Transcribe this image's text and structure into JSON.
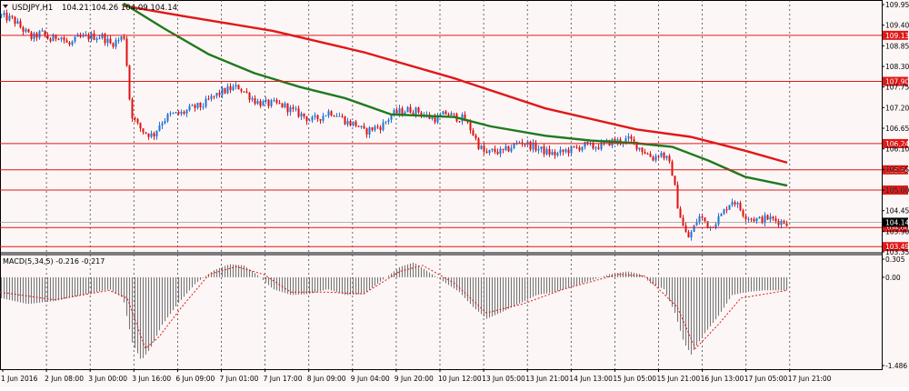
{
  "window": {
    "symbol_label": "USDJPY,H1",
    "ohlc_label": "104.21 104.26 104.09 104.14",
    "menu_icon": "triangle-down-icon"
  },
  "colors": {
    "background": "#fdf6f6",
    "bull_candle": "#1e74d6",
    "bear_candle": "#e01010",
    "ma_fast": "#e01818",
    "ma_slow": "#1e7a1e",
    "level_line": "#e01818",
    "grid": "#444444",
    "macd_hist": "#777777",
    "macd_signal": "#e01818"
  },
  "chart_data": [
    {
      "type": "candlestick",
      "symbol": "USDJPY",
      "timeframe": "H1",
      "ylim": [
        103.35,
        110.0
      ],
      "y_ticks": [
        "109.95",
        "109.40",
        "108.85",
        "108.30",
        "107.75",
        "107.20",
        "106.65",
        "106.10",
        "105.55",
        "105.00",
        "104.45",
        "103.90",
        "103.35"
      ],
      "x_ticks": [
        "1 Jun 2016",
        "2 Jun 08:00",
        "3 Jun 00:00",
        "3 Jun 16:00",
        "6 Jun 09:00",
        "7 Jun 01:00",
        "7 Jun 17:00",
        "8 Jun 09:00",
        "9 Jun 04:00",
        "9 Jun 20:00",
        "10 Jun 12:00",
        "13 Jun 05:00",
        "13 Jun 21:00",
        "14 Jun 13:00",
        "15 Jun 05:00",
        "15 Jun 21:00",
        "16 Jun 13:00",
        "17 Jun 05:00",
        "17 Jun 21:00"
      ],
      "price_path": [
        [
          0,
          109.65
        ],
        [
          14,
          109.55
        ],
        [
          24,
          109.3
        ],
        [
          35,
          109.05
        ],
        [
          45,
          109.2
        ],
        [
          55,
          109.0
        ],
        [
          65,
          109.15
        ],
        [
          75,
          108.85
        ],
        [
          85,
          109.05
        ],
        [
          100,
          109.1
        ],
        [
          112,
          109.1
        ],
        [
          121,
          108.9
        ],
        [
          128,
          108.98
        ],
        [
          137,
          109.12
        ],
        [
          141,
          107.6
        ],
        [
          145,
          107.0
        ],
        [
          150,
          106.75
        ],
        [
          158,
          106.55
        ],
        [
          168,
          106.45
        ],
        [
          176,
          106.8
        ],
        [
          186,
          107.0
        ],
        [
          200,
          107.05
        ],
        [
          212,
          107.2
        ],
        [
          222,
          107.25
        ],
        [
          232,
          107.45
        ],
        [
          242,
          107.6
        ],
        [
          252,
          107.7
        ],
        [
          262,
          107.75
        ],
        [
          272,
          107.55
        ],
        [
          282,
          107.35
        ],
        [
          292,
          107.3
        ],
        [
          302,
          107.3
        ],
        [
          312,
          107.25
        ],
        [
          322,
          107.1
        ],
        [
          332,
          107.0
        ],
        [
          342,
          106.85
        ],
        [
          352,
          106.95
        ],
        [
          362,
          107.1
        ],
        [
          372,
          107.0
        ],
        [
          382,
          106.8
        ],
        [
          392,
          106.75
        ],
        [
          400,
          106.55
        ],
        [
          410,
          106.65
        ],
        [
          420,
          106.72
        ],
        [
          430,
          107.0
        ],
        [
          440,
          107.1
        ],
        [
          450,
          107.15
        ],
        [
          460,
          107.1
        ],
        [
          470,
          106.95
        ],
        [
          480,
          106.9
        ],
        [
          490,
          107.05
        ],
        [
          500,
          106.95
        ],
        [
          510,
          106.9
        ],
        [
          518,
          106.6
        ],
        [
          526,
          106.2
        ],
        [
          534,
          105.95
        ],
        [
          542,
          106.05
        ],
        [
          552,
          106.0
        ],
        [
          562,
          106.15
        ],
        [
          572,
          106.3
        ],
        [
          582,
          106.2
        ],
        [
          592,
          106.1
        ],
        [
          602,
          106.0
        ],
        [
          612,
          105.95
        ],
        [
          622,
          106.05
        ],
        [
          632,
          106.1
        ],
        [
          642,
          106.2
        ],
        [
          652,
          106.15
        ],
        [
          662,
          106.2
        ],
        [
          672,
          106.3
        ],
        [
          682,
          106.3
        ],
        [
          692,
          106.35
        ],
        [
          702,
          106.15
        ],
        [
          710,
          106.0
        ],
        [
          718,
          105.85
        ],
        [
          726,
          106.0
        ],
        [
          734,
          105.8
        ],
        [
          740,
          105.4
        ],
        [
          744,
          104.7
        ],
        [
          750,
          104.1
        ],
        [
          756,
          103.7
        ],
        [
          762,
          103.95
        ],
        [
          768,
          104.3
        ],
        [
          774,
          104.2
        ],
        [
          780,
          104.0
        ],
        [
          786,
          104.15
        ],
        [
          794,
          104.35
        ],
        [
          800,
          104.6
        ],
        [
          806,
          104.75
        ],
        [
          812,
          104.55
        ],
        [
          818,
          104.35
        ],
        [
          826,
          104.25
        ],
        [
          834,
          104.2
        ],
        [
          844,
          104.25
        ],
        [
          854,
          104.18
        ],
        [
          866,
          104.14
        ]
      ],
      "series": [
        {
          "name": "",
          "color_key": "ma_fast",
          "points": [
            [
              136,
              109.92
            ],
            [
              200,
              109.65
            ],
            [
              300,
              109.25
            ],
            [
              400,
              108.68
            ],
            [
              500,
              107.98
            ],
            [
              600,
              107.18
            ],
            [
              700,
              106.62
            ],
            [
              760,
              106.42
            ],
            [
              820,
              106.05
            ],
            [
              866,
              105.73
            ]
          ]
        },
        {
          "name": "",
          "color_key": "ma_slow",
          "points": [
            [
              136,
              109.98
            ],
            [
              180,
              109.32
            ],
            [
              230,
              108.62
            ],
            [
              280,
              108.12
            ],
            [
              330,
              107.75
            ],
            [
              380,
              107.45
            ],
            [
              430,
              107.02
            ],
            [
              470,
              106.98
            ],
            [
              500,
              106.95
            ],
            [
              540,
              106.7
            ],
            [
              600,
              106.45
            ],
            [
              650,
              106.32
            ],
            [
              700,
              106.25
            ],
            [
              740,
              106.15
            ],
            [
              780,
              105.78
            ],
            [
              820,
              105.35
            ],
            [
              866,
              105.12
            ]
          ]
        }
      ],
      "levels": [
        "109.13",
        "107.90",
        "106.24",
        "105.54",
        "105.00",
        "104.00",
        "103.49"
      ],
      "current_price": "104.14"
    },
    {
      "type": "bar",
      "title": "MACD(5,34,5) -0.216 -0.217",
      "ylim": [
        -1.486,
        0.305
      ],
      "y_ticks": [
        "0.305",
        "0.00",
        "-1.486"
      ],
      "hist_path": [
        [
          0,
          -0.35
        ],
        [
          30,
          -0.45
        ],
        [
          60,
          -0.4
        ],
        [
          90,
          -0.3
        ],
        [
          120,
          -0.2
        ],
        [
          135,
          -0.35
        ],
        [
          145,
          -1.1
        ],
        [
          155,
          -1.4
        ],
        [
          165,
          -1.2
        ],
        [
          178,
          -0.8
        ],
        [
          195,
          -0.45
        ],
        [
          215,
          -0.1
        ],
        [
          235,
          0.12
        ],
        [
          252,
          0.22
        ],
        [
          268,
          0.2
        ],
        [
          282,
          0.05
        ],
        [
          300,
          -0.2
        ],
        [
          320,
          -0.3
        ],
        [
          340,
          -0.28
        ],
        [
          360,
          -0.2
        ],
        [
          380,
          -0.3
        ],
        [
          400,
          -0.28
        ],
        [
          420,
          -0.05
        ],
        [
          440,
          0.18
        ],
        [
          455,
          0.25
        ],
        [
          470,
          0.1
        ],
        [
          490,
          -0.1
        ],
        [
          505,
          -0.25
        ],
        [
          520,
          -0.5
        ],
        [
          535,
          -0.7
        ],
        [
          550,
          -0.6
        ],
        [
          570,
          -0.45
        ],
        [
          590,
          -0.3
        ],
        [
          610,
          -0.25
        ],
        [
          630,
          -0.15
        ],
        [
          650,
          -0.05
        ],
        [
          670,
          0.05
        ],
        [
          690,
          0.1
        ],
        [
          705,
          0.05
        ],
        [
          715,
          -0.1
        ],
        [
          730,
          -0.2
        ],
        [
          742,
          -0.6
        ],
        [
          752,
          -1.1
        ],
        [
          760,
          -1.3
        ],
        [
          772,
          -1.0
        ],
        [
          790,
          -0.65
        ],
        [
          805,
          -0.3
        ],
        [
          820,
          -0.25
        ],
        [
          840,
          -0.22
        ],
        [
          866,
          -0.22
        ]
      ],
      "signal_path": [
        [
          0,
          -0.25
        ],
        [
          60,
          -0.38
        ],
        [
          120,
          -0.22
        ],
        [
          140,
          -0.35
        ],
        [
          160,
          -1.2
        ],
        [
          175,
          -1.0
        ],
        [
          200,
          -0.5
        ],
        [
          230,
          0.05
        ],
        [
          260,
          0.18
        ],
        [
          290,
          0.05
        ],
        [
          320,
          -0.25
        ],
        [
          360,
          -0.25
        ],
        [
          400,
          -0.28
        ],
        [
          440,
          0.1
        ],
        [
          465,
          0.2
        ],
        [
          500,
          -0.1
        ],
        [
          535,
          -0.6
        ],
        [
          575,
          -0.45
        ],
        [
          620,
          -0.2
        ],
        [
          680,
          0.05
        ],
        [
          710,
          0.02
        ],
        [
          745,
          -0.5
        ],
        [
          765,
          -1.2
        ],
        [
          790,
          -0.8
        ],
        [
          815,
          -0.35
        ],
        [
          866,
          -0.22
        ]
      ]
    }
  ]
}
